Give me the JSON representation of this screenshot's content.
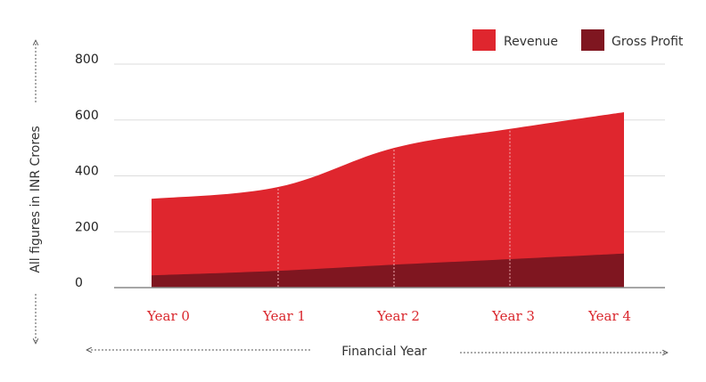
{
  "chart_data": {
    "type": "area",
    "categories": [
      "Year 0",
      "Year 1",
      "Year 2",
      "Year 3",
      "Year 4"
    ],
    "series": [
      {
        "name": "Revenue",
        "values": [
          318,
          360,
          500,
          568,
          628
        ],
        "color": "#df262e"
      },
      {
        "name": "Gross Profit",
        "values": [
          44,
          60,
          82,
          102,
          122
        ],
        "color": "#7f1620"
      }
    ],
    "xlabel": "Financial Year",
    "ylabel": "All figures in INR Crores",
    "ylim": [
      0,
      800
    ],
    "yticks": [
      0,
      200,
      400,
      600,
      800
    ],
    "grid": true,
    "legend": "top-right"
  }
}
